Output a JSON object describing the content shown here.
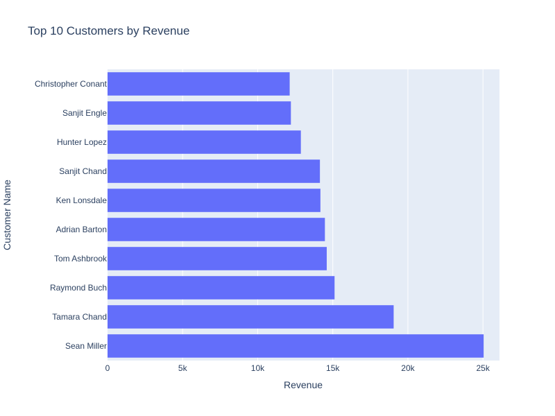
{
  "chart_data": {
    "type": "bar",
    "orientation": "horizontal",
    "title": "Top 10 Customers by Revenue",
    "xlabel": "Revenue",
    "ylabel": "Customer Name",
    "xlim": [
      0,
      26100
    ],
    "x_ticks": [
      0,
      5000,
      10000,
      15000,
      20000,
      25000
    ],
    "x_tick_labels": [
      "0",
      "5k",
      "10k",
      "15k",
      "20k",
      "25k"
    ],
    "grid": true,
    "colors": {
      "bar": "#636efa",
      "plot_bg": "#e5ecf6",
      "grid": "#ffffff",
      "text": "#2a3f5f"
    },
    "categories": [
      "Sean Miller",
      "Tamara Chand",
      "Raymond Buch",
      "Tom Ashbrook",
      "Adrian Barton",
      "Ken Lonsdale",
      "Sanjit Chand",
      "Hunter Lopez",
      "Sanjit Engle",
      "Christopher Conant"
    ],
    "values": [
      25043,
      19052,
      15117,
      14596,
      14474,
      14175,
      14142,
      12873,
      12209,
      12129
    ]
  }
}
